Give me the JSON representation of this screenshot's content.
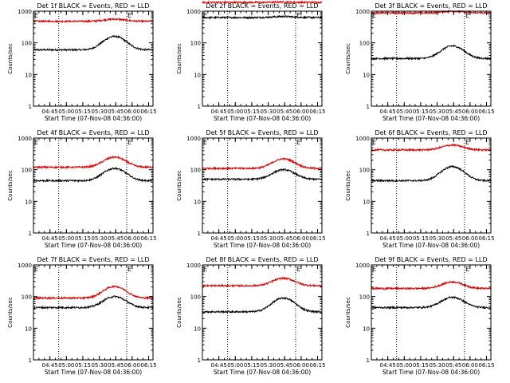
{
  "chart_data": {
    "type": "line",
    "scale": "log-y",
    "ylim": [
      1,
      1000
    ],
    "y_ticks": [
      1,
      10,
      100,
      1000
    ],
    "y_tick_labels": [
      "1",
      "10",
      "100",
      "1000"
    ],
    "x_ticks": [
      "04:45",
      "05:00",
      "05:15",
      "05:30",
      "05:45",
      "06:00",
      "06:15"
    ],
    "x_range_minutes": [
      270,
      379
    ],
    "xlabel": "Start Time (07-Nov-08 04:36:00)",
    "ylabel": "Counts/sec",
    "vertical_lines": [
      "04:53",
      "05:55"
    ],
    "corner_marks": [
      "E",
      "E"
    ],
    "panels": [
      {
        "title": "Det 1f BLACK = Events, RED = LLD",
        "series": [
          {
            "color": "#000000",
            "base": 60,
            "peak": 160
          },
          {
            "color": "#dd0000",
            "base": 480,
            "peak": 560
          }
        ]
      },
      {
        "title": "Det 2f BLACK = Events, RED = LLD",
        "series": [
          {
            "color": "#000000",
            "base": 630,
            "peak": 680
          },
          {
            "color": "#dd0000",
            "base": 1900,
            "peak": 1950
          }
        ]
      },
      {
        "title": "Det 3f BLACK = Events, RED = LLD",
        "series": [
          {
            "color": "#000000",
            "base": 32,
            "peak": 80
          },
          {
            "color": "#dd0000",
            "base": 880,
            "peak": 1000
          }
        ]
      },
      {
        "title": "Det 4f BLACK = Events, RED = LLD",
        "series": [
          {
            "color": "#000000",
            "base": 45,
            "peak": 110
          },
          {
            "color": "#dd0000",
            "base": 120,
            "peak": 250
          }
        ]
      },
      {
        "title": "Det 5f BLACK = Events, RED = LLD",
        "series": [
          {
            "color": "#000000",
            "base": 50,
            "peak": 100
          },
          {
            "color": "#dd0000",
            "base": 110,
            "peak": 220
          }
        ]
      },
      {
        "title": "Det 6f BLACK = Events, RED = LLD",
        "series": [
          {
            "color": "#000000",
            "base": 45,
            "peak": 125
          },
          {
            "color": "#dd0000",
            "base": 420,
            "peak": 600
          }
        ]
      },
      {
        "title": "Det 7f BLACK = Events, RED = LLD",
        "series": [
          {
            "color": "#000000",
            "base": 45,
            "peak": 100
          },
          {
            "color": "#dd0000",
            "base": 90,
            "peak": 210
          }
        ]
      },
      {
        "title": "Det 8f BLACK = Events, RED = LLD",
        "series": [
          {
            "color": "#000000",
            "base": 33,
            "peak": 90
          },
          {
            "color": "#dd0000",
            "base": 220,
            "peak": 380
          }
        ]
      },
      {
        "title": "Det 9f BLACK = Events, RED = LLD",
        "series": [
          {
            "color": "#000000",
            "base": 45,
            "peak": 95
          },
          {
            "color": "#dd0000",
            "base": 180,
            "peak": 290
          }
        ]
      }
    ]
  }
}
